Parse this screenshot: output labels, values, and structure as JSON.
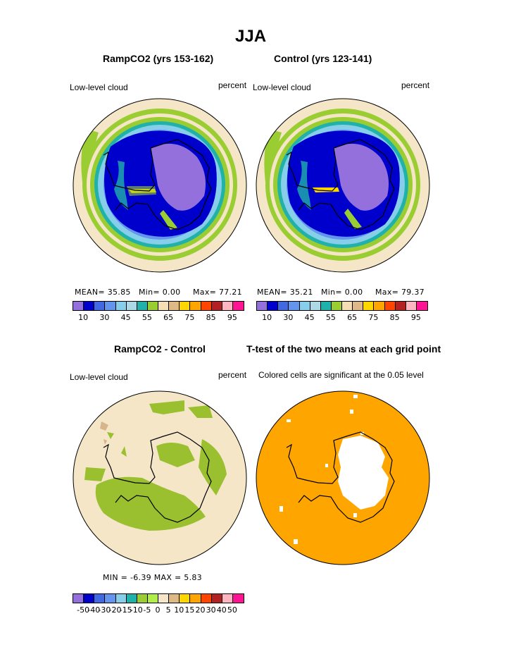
{
  "title": "JJA",
  "panels": {
    "top_left": {
      "title": "RampCO2 (yrs 153-162)",
      "left_label": "Low-level cloud",
      "right_label": "percent",
      "mean": "MEAN=  35.85",
      "min": "Min=    0.00",
      "max": "Max=   77.21"
    },
    "top_right": {
      "title": "Control (yrs 123-141)",
      "left_label": "Low-level cloud",
      "right_label": "percent",
      "mean": "MEAN=  35.21",
      "min": "Min=    0.00",
      "max": "Max=   79.37"
    },
    "bottom_left": {
      "title": "RampCO2 - Control",
      "left_label": "Low-level cloud",
      "right_label": "percent",
      "minmax": "MIN =   -6.39  MAX =    5.83"
    },
    "bottom_right": {
      "title": "T-test of the two means at each grid point",
      "subtitle": "Colored cells are significant at the 0.05 level"
    }
  },
  "colorbar_top": {
    "colors": [
      "#9370db",
      "#0000cd",
      "#4169e1",
      "#6495ed",
      "#87ceeb",
      "#add8e6",
      "#20b2aa",
      "#9acd32",
      "#f5deb3",
      "#deb887",
      "#ffd700",
      "#ffa500",
      "#ff4500",
      "#b22222",
      "#ffb6c1",
      "#ff1493"
    ],
    "labels": [
      "10",
      "30",
      "45",
      "55",
      "65",
      "75",
      "85",
      "95"
    ]
  },
  "colorbar_bottom": {
    "colors": [
      "#9370db",
      "#0000cd",
      "#4169e1",
      "#6495ed",
      "#87ceeb",
      "#20b2aa",
      "#9acd32",
      "#b2ee4a",
      "#f5e6c8",
      "#deb887",
      "#ffd700",
      "#ffa500",
      "#ff4500",
      "#b22222",
      "#ffb6c1",
      "#ff1493"
    ],
    "labels": [
      "-50",
      "-40",
      "-30",
      "-20",
      "-15",
      "-10",
      "-5",
      "0",
      "5",
      "10",
      "15",
      "20",
      "30",
      "40",
      "50"
    ]
  },
  "map_colors": {
    "outer": "#f5e6c8",
    "ring_green": "#9acd32",
    "ring_teal": "#20b2aa",
    "ring_lightblue": "#87ceeb",
    "ring_blue": "#6495ed",
    "ring_royal": "#4169e1",
    "ring_dark": "#0000cd",
    "interior": "#9370db",
    "diff_green": "#9ac030",
    "diff_brown": "#d8b48c",
    "ttest_fill": "#ffa500"
  }
}
